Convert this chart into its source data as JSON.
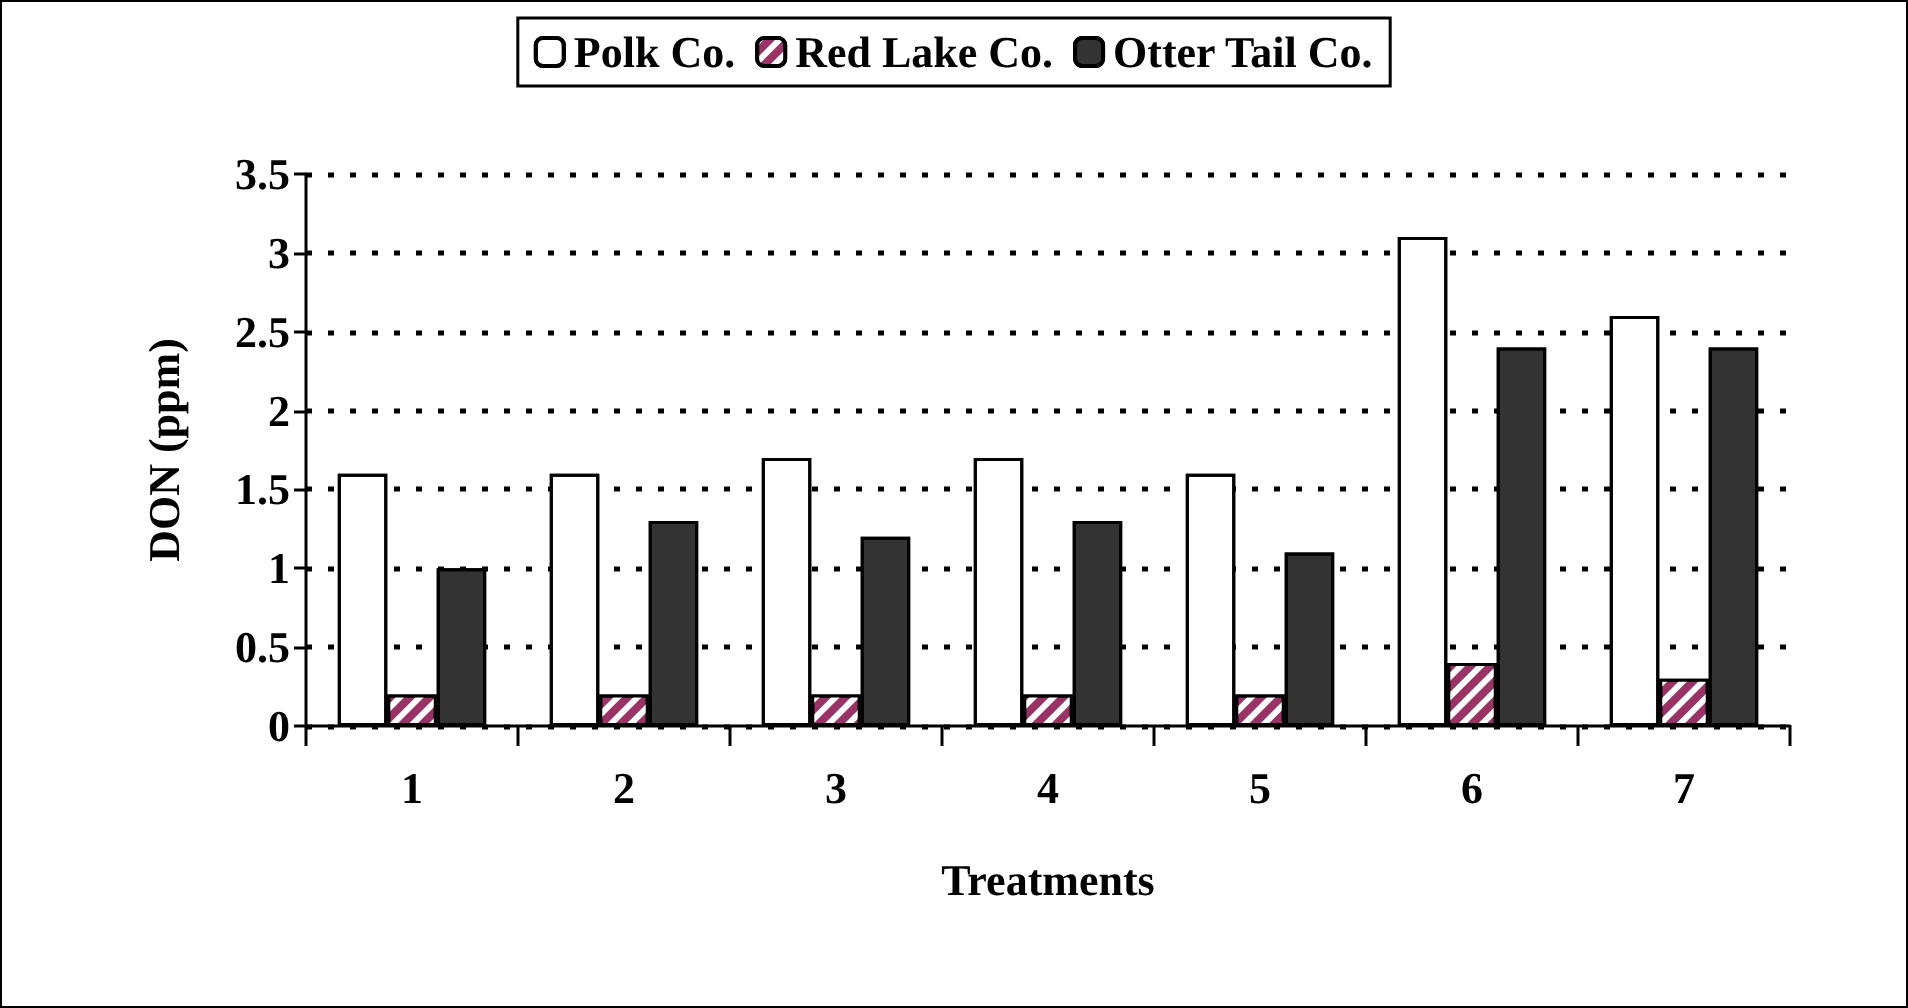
{
  "chart_data": {
    "type": "bar",
    "xlabel": "Treatments",
    "ylabel": "DON (ppm)",
    "categories": [
      "1",
      "2",
      "3",
      "4",
      "5",
      "6",
      "7"
    ],
    "series": [
      {
        "name": "Polk Co.",
        "color": "#ffffff",
        "values": [
          1.6,
          1.6,
          1.7,
          1.7,
          1.6,
          3.1,
          2.6
        ]
      },
      {
        "name": "Red Lake Co.",
        "color": "#993366",
        "values": [
          0.2,
          0.2,
          0.2,
          0.2,
          0.2,
          0.4,
          0.3
        ]
      },
      {
        "name": "Otter Tail Co.",
        "color": "#333333",
        "values": [
          1.0,
          1.3,
          1.2,
          1.3,
          1.1,
          2.4,
          2.4
        ]
      }
    ],
    "ylim": [
      0,
      3.5
    ],
    "yticks": [
      0,
      0.5,
      1,
      1.5,
      2,
      2.5,
      3,
      3.5
    ],
    "grid": "y",
    "legend": "top"
  }
}
